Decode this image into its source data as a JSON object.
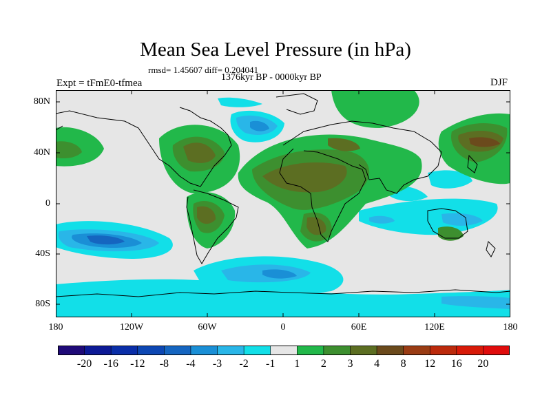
{
  "title": "Mean Sea Level Pressure (in hPa)",
  "stats": "rmsd= 1.45607 diff= 0.204041",
  "period": "1376kyr BP - 0000kyr BP",
  "experiment": "Expt = tFmE0-tfmea",
  "season": "DJF",
  "lat_ticks": [
    {
      "label": "80N",
      "lat": 80
    },
    {
      "label": "40N",
      "lat": 40
    },
    {
      "label": "0",
      "lat": 0
    },
    {
      "label": "40S",
      "lat": -40
    },
    {
      "label": "80S",
      "lat": -80
    }
  ],
  "lon_ticks": [
    {
      "label": "180",
      "lon": -180
    },
    {
      "label": "120W",
      "lon": -120
    },
    {
      "label": "60W",
      "lon": -60
    },
    {
      "label": "0",
      "lon": 0
    },
    {
      "label": "60E",
      "lon": 60
    },
    {
      "label": "120E",
      "lon": 120
    },
    {
      "label": "180",
      "lon": 180
    }
  ],
  "colorbar": {
    "labels": [
      "-20",
      "-16",
      "-12",
      "-8",
      "-4",
      "-3",
      "-2",
      "-1",
      "1",
      "2",
      "3",
      "4",
      "8",
      "12",
      "16",
      "20"
    ],
    "colors": [
      "#1f0a78",
      "#0d1a96",
      "#0a2ea8",
      "#0d47b3",
      "#1565c0",
      "#1a8fd6",
      "#29b6e8",
      "#12dfe8",
      "#e6e6e6",
      "#22b84a",
      "#3d8f2f",
      "#5c6e22",
      "#6b4a1c",
      "#9a3c14",
      "#bc2a0c",
      "#d81a08",
      "#e00c0c"
    ]
  },
  "colors": {
    "neutral": "#e6e6e6",
    "coast": "#000000"
  }
}
